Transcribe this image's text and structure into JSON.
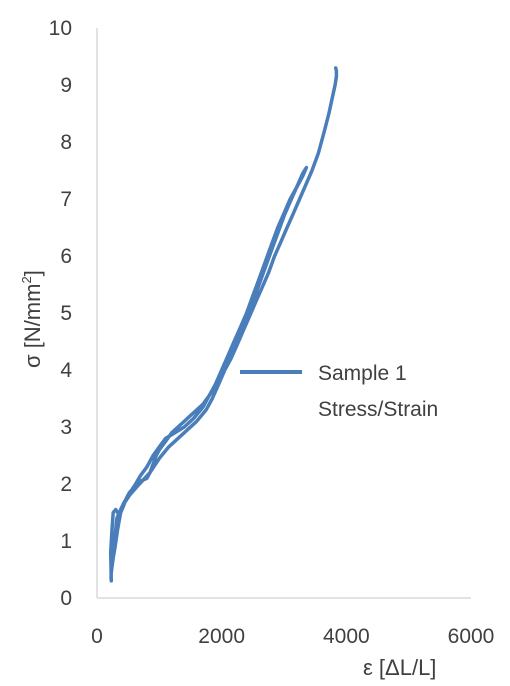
{
  "chart_data": {
    "type": "line",
    "xlabel": "ε [ΔL/L]",
    "ylabel_main": "σ [N/mm",
    "ylabel_sup": "2",
    "ylabel_close": "]",
    "xlim": [
      0,
      6000
    ],
    "ylim": [
      0,
      10
    ],
    "x_ticks": [
      0,
      2000,
      4000,
      6000
    ],
    "y_ticks": [
      0,
      1,
      2,
      3,
      4,
      5,
      6,
      7,
      8,
      9,
      10
    ],
    "grid": false,
    "legend_position": "right",
    "series": [
      {
        "name": "Sample 1",
        "name_line2": "Stress/Strain",
        "color": "#4a7ebb",
        "x": [
          230,
          220,
          240,
          260,
          300,
          330,
          350,
          380,
          420,
          470,
          520,
          560,
          620,
          700,
          800,
          900,
          1000,
          1100,
          1250,
          1400,
          1550,
          1700,
          1800,
          1900,
          2000,
          2100,
          2200,
          2300,
          2400,
          2500,
          2600,
          2700,
          2800,
          2900,
          3000,
          3100,
          3200,
          3300,
          3360,
          3300,
          3200,
          3100,
          3000,
          2900,
          2800,
          2700,
          2600,
          2500,
          2400,
          2300,
          2200,
          2100,
          2000,
          1900,
          1800,
          1700,
          1600,
          1500,
          1400,
          1300,
          1200,
          1100,
          1000,
          950,
          900,
          850,
          800,
          700,
          600,
          500,
          420,
          380,
          330,
          290,
          260,
          240,
          230,
          225,
          235,
          280,
          320,
          400,
          520,
          680,
          850,
          1000,
          1150,
          1300,
          1450,
          1600,
          1750,
          1850,
          1950,
          2050,
          2150,
          2250,
          2350,
          2450,
          2550,
          2650,
          2750,
          2850,
          2950,
          3050,
          3150,
          3250,
          3350,
          3450,
          3550,
          3650,
          3720,
          3780,
          3820,
          3840,
          3840,
          3830
        ],
        "y": [
          0.3,
          0.8,
          1.2,
          1.5,
          1.55,
          1.5,
          1.45,
          1.5,
          1.6,
          1.75,
          1.85,
          1.9,
          2.0,
          2.15,
          2.3,
          2.5,
          2.65,
          2.8,
          2.9,
          3.0,
          3.15,
          3.35,
          3.55,
          3.75,
          4.0,
          4.25,
          4.5,
          4.75,
          5.0,
          5.3,
          5.6,
          5.9,
          6.2,
          6.5,
          6.75,
          7.0,
          7.2,
          7.4,
          7.55,
          7.45,
          7.2,
          6.95,
          6.7,
          6.4,
          6.1,
          5.8,
          5.5,
          5.2,
          4.9,
          4.6,
          4.35,
          4.1,
          3.9,
          3.7,
          3.55,
          3.4,
          3.3,
          3.2,
          3.1,
          3.0,
          2.9,
          2.75,
          2.6,
          2.5,
          2.35,
          2.2,
          2.1,
          2.05,
          1.95,
          1.8,
          1.65,
          1.5,
          1.2,
          0.9,
          0.7,
          0.55,
          0.45,
          0.35,
          0.6,
          1.0,
          1.4,
          1.6,
          1.8,
          2.0,
          2.2,
          2.45,
          2.65,
          2.8,
          2.95,
          3.1,
          3.3,
          3.5,
          3.75,
          4.0,
          4.2,
          4.45,
          4.7,
          4.95,
          5.2,
          5.45,
          5.7,
          6.0,
          6.25,
          6.5,
          6.75,
          7.0,
          7.25,
          7.5,
          7.8,
          8.2,
          8.5,
          8.8,
          9.0,
          9.15,
          9.25,
          9.3
        ]
      }
    ]
  }
}
